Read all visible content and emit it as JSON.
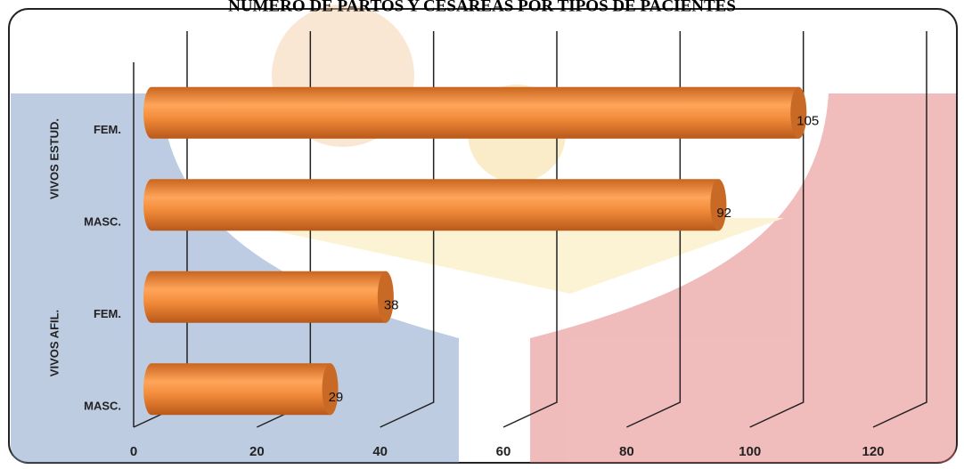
{
  "chart_data": {
    "type": "bar",
    "orientation": "horizontal",
    "title": "NÚMERO DE PARTOS Y CESÁREAS POR TIPOS DE PACIENTES",
    "groups": [
      "VIVOS ESTUD.",
      "VIVOS AFIL."
    ],
    "categories": [
      "FEM.",
      "MASC.",
      "FEM.",
      "MASC."
    ],
    "values": [
      105,
      92,
      38,
      29
    ],
    "color": "#f08a3a",
    "xlim": [
      0,
      120
    ],
    "xticks": [
      0,
      20,
      40,
      60,
      80,
      100,
      120
    ],
    "grid": true
  }
}
